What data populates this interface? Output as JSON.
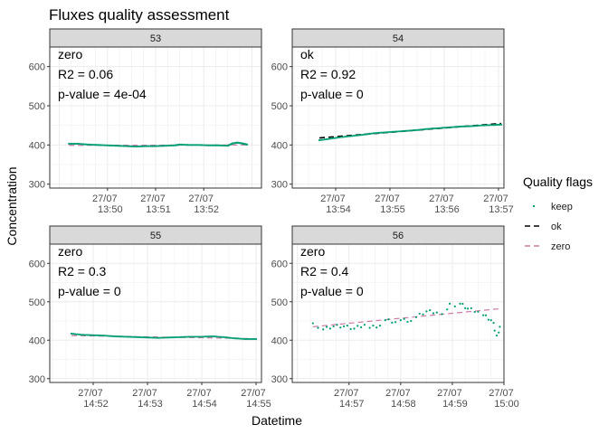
{
  "chart_data": {
    "type": "scatter",
    "title": "Fluxes quality assessment",
    "xlabel": "Datetime",
    "ylabel": "Concentration",
    "ylim": [
      290,
      650
    ],
    "yticks": [
      300,
      400,
      500,
      600
    ],
    "legend": {
      "title": "Quality flags",
      "position": "right",
      "entries": [
        {
          "label": "keep",
          "kind": "point",
          "color": "#009E73"
        },
        {
          "label": "ok",
          "kind": "dash",
          "color": "#000000"
        },
        {
          "label": "zero",
          "kind": "dash",
          "color": "#CC79A7"
        }
      ]
    },
    "panels": [
      {
        "strip": "53",
        "flag": "zero",
        "r2": "R2 = 0.06",
        "pvalue": "p-value = 4e-04",
        "xlim": [
          48.8,
          53.2
        ],
        "xticks": [
          {
            "v": 50,
            "l1": "27/07",
            "l2": "13:50"
          },
          {
            "v": 51,
            "l1": "27/07",
            "l2": "13:51"
          },
          {
            "v": 52,
            "l1": "27/07",
            "l2": "13:52"
          }
        ],
        "points": [
          [
            49.2,
            403
          ],
          [
            49.4,
            403
          ],
          [
            49.6,
            401
          ],
          [
            49.8,
            400
          ],
          [
            50.0,
            399
          ],
          [
            50.2,
            398
          ],
          [
            50.4,
            397
          ],
          [
            50.6,
            396
          ],
          [
            50.8,
            397
          ],
          [
            51.0,
            397
          ],
          [
            51.2,
            398
          ],
          [
            51.4,
            399
          ],
          [
            51.5,
            401
          ],
          [
            51.7,
            400
          ],
          [
            51.9,
            400
          ],
          [
            52.1,
            399
          ],
          [
            52.3,
            399
          ],
          [
            52.5,
            398
          ],
          [
            52.6,
            404
          ],
          [
            52.7,
            406
          ],
          [
            52.8,
            404
          ],
          [
            52.9,
            401
          ]
        ],
        "fit": [
          [
            49.2,
            399
          ],
          [
            52.9,
            400
          ]
        ]
      },
      {
        "strip": "54",
        "flag": "ok",
        "r2": "R2 = 0.92",
        "pvalue": "p-value = 0",
        "xlim": [
          53.2,
          57.1
        ],
        "xticks": [
          {
            "v": 54,
            "l1": "27/07",
            "l2": "13:54"
          },
          {
            "v": 55,
            "l1": "27/07",
            "l2": "13:55"
          },
          {
            "v": 56,
            "l1": "27/07",
            "l2": "13:56"
          },
          {
            "v": 57,
            "l1": "27/07",
            "l2": "13:57"
          }
        ],
        "points": [
          [
            53.7,
            412
          ],
          [
            53.9,
            416
          ],
          [
            54.1,
            420
          ],
          [
            54.3,
            423
          ],
          [
            54.5,
            426
          ],
          [
            54.7,
            430
          ],
          [
            54.9,
            432
          ],
          [
            55.1,
            434
          ],
          [
            55.3,
            436
          ],
          [
            55.5,
            438
          ],
          [
            55.7,
            441
          ],
          [
            55.9,
            443
          ],
          [
            56.1,
            445
          ],
          [
            56.3,
            447
          ],
          [
            56.5,
            448
          ],
          [
            56.7,
            450
          ],
          [
            56.9,
            451
          ],
          [
            57.05,
            452
          ]
        ],
        "fit": [
          [
            53.7,
            418
          ],
          [
            57.05,
            455
          ]
        ]
      },
      {
        "strip": "55",
        "flag": "zero",
        "r2": "R2 = 0.3",
        "pvalue": "p-value = 0",
        "xlim": [
          51.2,
          55.1
        ],
        "xticks": [
          {
            "v": 52,
            "l1": "27/07",
            "l2": "14:52"
          },
          {
            "v": 53,
            "l1": "27/07",
            "l2": "14:53"
          },
          {
            "v": 54,
            "l1": "27/07",
            "l2": "14:54"
          },
          {
            "v": 55,
            "l1": "27/07",
            "l2": "14:55"
          }
        ],
        "points": [
          [
            51.6,
            417
          ],
          [
            51.8,
            414
          ],
          [
            52.0,
            413
          ],
          [
            52.2,
            412
          ],
          [
            52.4,
            410
          ],
          [
            52.6,
            409
          ],
          [
            52.8,
            408
          ],
          [
            53.0,
            407
          ],
          [
            53.2,
            406
          ],
          [
            53.4,
            407
          ],
          [
            53.6,
            408
          ],
          [
            53.8,
            409
          ],
          [
            54.0,
            409
          ],
          [
            54.2,
            410
          ],
          [
            54.4,
            408
          ],
          [
            54.6,
            405
          ],
          [
            54.8,
            403
          ],
          [
            55.0,
            403
          ]
        ],
        "fit": [
          [
            51.6,
            412
          ],
          [
            55.0,
            404
          ]
        ]
      },
      {
        "strip": "56",
        "flag": "zero",
        "r2": "R2 = 0.4",
        "pvalue": "p-value = 0",
        "xlim": [
          55.9,
          60.0
        ],
        "xticks": [
          {
            "v": 57,
            "l1": "27/07",
            "l2": "14:57"
          },
          {
            "v": 58,
            "l1": "27/07",
            "l2": "14:58"
          },
          {
            "v": 59,
            "l1": "27/07",
            "l2": "14:59"
          },
          {
            "v": 60,
            "l1": "27/07",
            "l2": "15:00"
          }
        ],
        "points": [
          [
            56.3,
            444
          ],
          [
            56.4,
            432
          ],
          [
            56.5,
            428
          ],
          [
            56.7,
            436
          ],
          [
            56.9,
            436
          ],
          [
            57.1,
            430
          ],
          [
            57.3,
            440
          ],
          [
            57.4,
            432
          ],
          [
            57.6,
            438
          ],
          [
            57.7,
            452
          ],
          [
            57.9,
            447
          ],
          [
            58.0,
            452
          ],
          [
            58.2,
            450
          ],
          [
            58.3,
            460
          ],
          [
            58.5,
            475
          ],
          [
            58.7,
            472
          ],
          [
            58.8,
            468
          ],
          [
            58.9,
            480
          ],
          [
            58.95,
            495
          ],
          [
            59.05,
            488
          ],
          [
            59.15,
            495
          ],
          [
            59.3,
            482
          ],
          [
            59.5,
            474
          ],
          [
            59.6,
            465
          ],
          [
            59.75,
            452
          ],
          [
            59.8,
            445
          ],
          [
            59.82,
            425
          ],
          [
            59.86,
            412
          ],
          [
            59.9,
            420
          ],
          [
            59.92,
            435
          ]
        ],
        "fit": [
          [
            56.3,
            435
          ],
          [
            59.92,
            482
          ]
        ]
      }
    ]
  }
}
